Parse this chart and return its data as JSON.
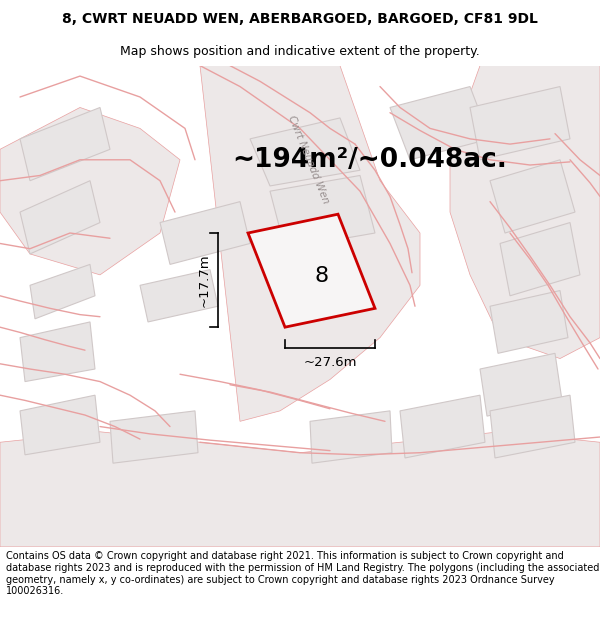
{
  "title_line1": "8, CWRT NEUADD WEN, ABERBARGOED, BARGOED, CF81 9DL",
  "title_line2": "Map shows position and indicative extent of the property.",
  "area_text": "~194m²/~0.048ac.",
  "dim_width": "~27.6m",
  "dim_height": "~17.7m",
  "plot_number": "8",
  "footer_text": "Contains OS data © Crown copyright and database right 2021. This information is subject to Crown copyright and database rights 2023 and is reproduced with the permission of HM Land Registry. The polygons (including the associated geometry, namely x, y co-ordinates) are subject to Crown copyright and database rights 2023 Ordnance Survey 100026316.",
  "bg_color": "#ffffff",
  "map_bg": "#f7f5f5",
  "plot_fill": "#e8e5e5",
  "plot_edge": "#cc0000",
  "road_color_fill": "#f0c8c8",
  "road_line_color": "#e8a0a0",
  "building_fill": "#e8e5e5",
  "building_edge": "#d0c8c8",
  "street_label": "Cwrt Neuadd Wen",
  "title_fontsize": 10,
  "subtitle_fontsize": 9,
  "area_fontsize": 19,
  "dim_fontsize": 9.5,
  "plot_label_fontsize": 16,
  "footer_fontsize": 7
}
